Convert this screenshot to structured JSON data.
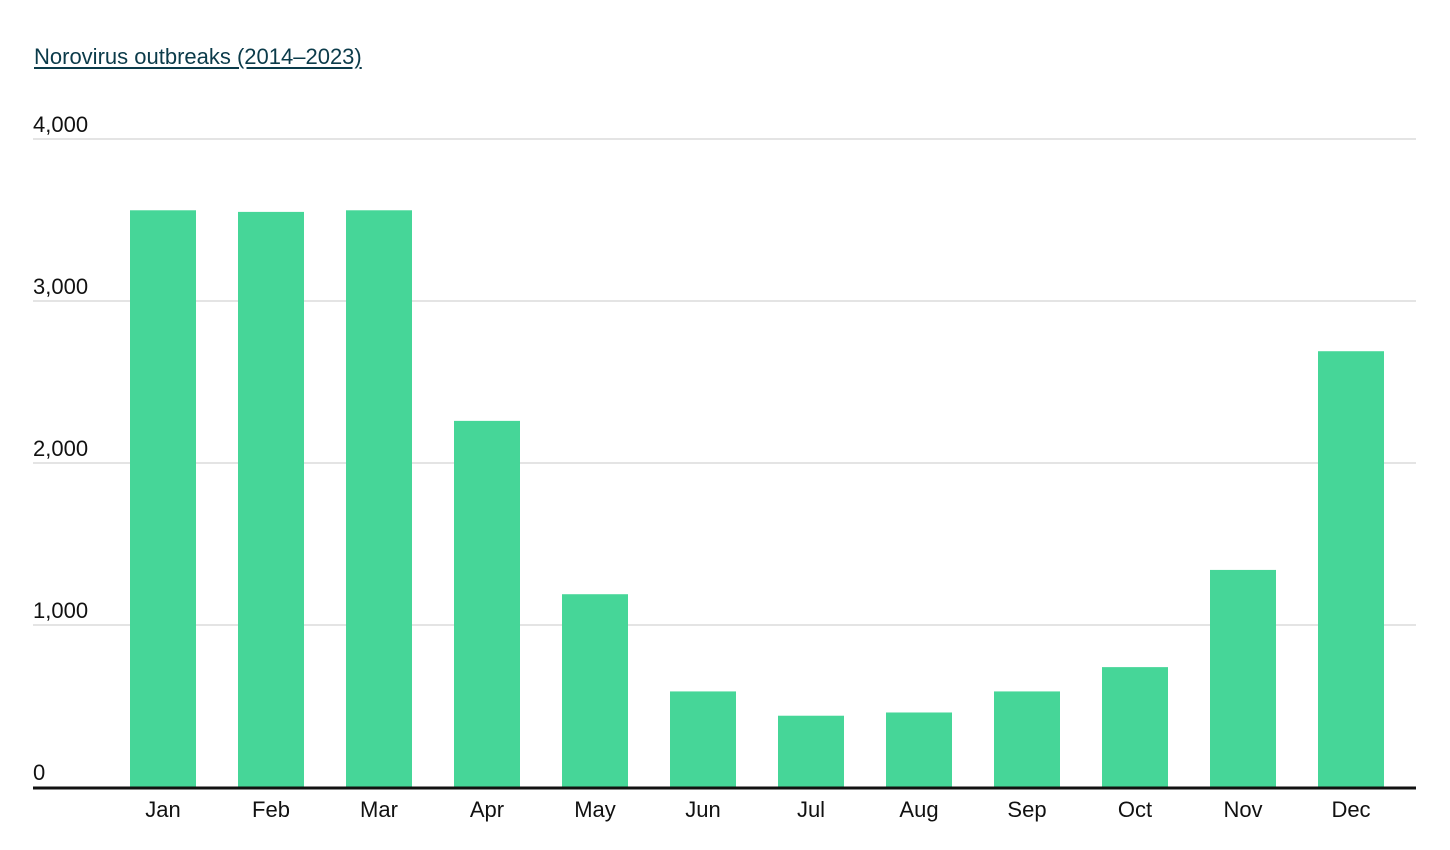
{
  "chart_title": "Norovirus outbreaks (2014–2023)",
  "colors": {
    "bar": "#46d698",
    "grid": "#dcdcdc",
    "axis": "#111111",
    "title": "#0b3b4a"
  },
  "chart_data": {
    "type": "bar",
    "title": "Norovirus outbreaks (2014–2023)",
    "xlabel": "",
    "ylabel": "",
    "categories": [
      "Jan",
      "Feb",
      "Mar",
      "Apr",
      "May",
      "Jun",
      "Jul",
      "Aug",
      "Sep",
      "Oct",
      "Nov",
      "Dec"
    ],
    "values": [
      3560,
      3550,
      3560,
      2260,
      1190,
      590,
      440,
      460,
      590,
      740,
      1340,
      2690
    ],
    "ylim": [
      0,
      4000
    ],
    "yticks": [
      0,
      1000,
      2000,
      3000,
      4000
    ],
    "ytick_labels": [
      "0",
      "1,000",
      "2,000",
      "3,000",
      "4,000"
    ],
    "grid": true,
    "legend": "none"
  }
}
